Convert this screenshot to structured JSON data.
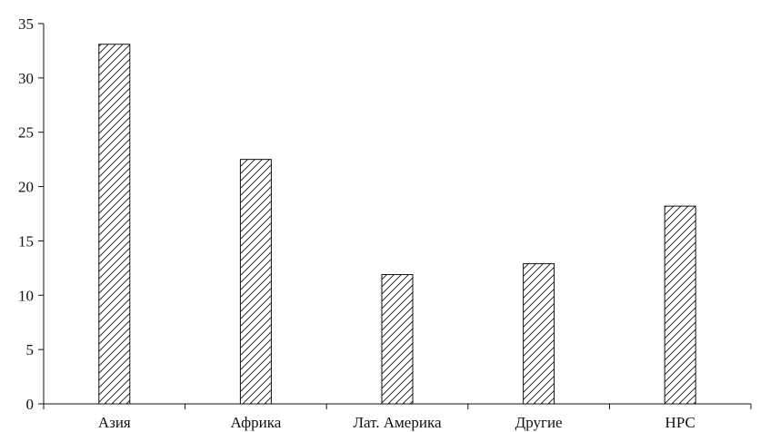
{
  "chart_data": {
    "type": "bar",
    "categories": [
      "Азия",
      "Африка",
      "Лат. Америка",
      "Другие",
      "НРС"
    ],
    "values": [
      33.1,
      22.5,
      11.9,
      12.9,
      18.2
    ],
    "ylim": [
      0,
      35
    ],
    "yticks": [
      0,
      5,
      10,
      15,
      20,
      25,
      30,
      35
    ],
    "grid": false,
    "legend": "none",
    "bar_fill": "diagonal-hatch",
    "colors": {
      "bar_stroke": "#111111",
      "hatch": "#111111",
      "axis": "#111111",
      "background": "#ffffff"
    }
  }
}
